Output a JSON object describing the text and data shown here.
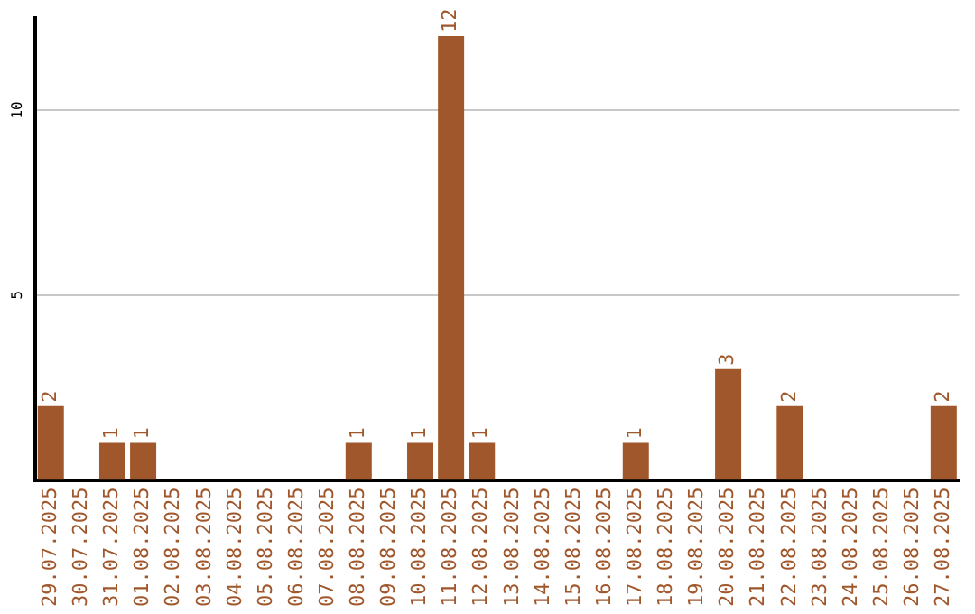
{
  "chart_data": {
    "type": "bar",
    "categories": [
      "29.07.2025",
      "30.07.2025",
      "31.07.2025",
      "01.08.2025",
      "02.08.2025",
      "03.08.2025",
      "04.08.2025",
      "05.08.2025",
      "06.08.2025",
      "07.08.2025",
      "08.08.2025",
      "09.08.2025",
      "10.08.2025",
      "11.08.2025",
      "12.08.2025",
      "13.08.2025",
      "14.08.2025",
      "15.08.2025",
      "16.08.2025",
      "17.08.2025",
      "18.08.2025",
      "19.08.2025",
      "20.08.2025",
      "21.08.2025",
      "22.08.2025",
      "23.08.2025",
      "24.08.2025",
      "25.08.2025",
      "26.08.2025",
      "27.08.2025"
    ],
    "values": [
      2,
      0,
      1,
      1,
      0,
      0,
      0,
      0,
      0,
      0,
      1,
      0,
      1,
      12,
      1,
      0,
      0,
      0,
      0,
      1,
      0,
      0,
      3,
      0,
      2,
      0,
      0,
      0,
      0,
      2
    ],
    "value_labels": [
      "2",
      null,
      "1",
      "1",
      null,
      null,
      null,
      null,
      null,
      null,
      "1",
      null,
      "1",
      "12",
      "1",
      null,
      null,
      null,
      null,
      "1",
      null,
      null,
      "3",
      null,
      "2",
      null,
      null,
      null,
      null,
      "2"
    ],
    "color": "#a0572b",
    "ylim": [
      0,
      12.5
    ],
    "yticks": [
      5,
      10
    ],
    "grid": "y",
    "legend": false
  }
}
